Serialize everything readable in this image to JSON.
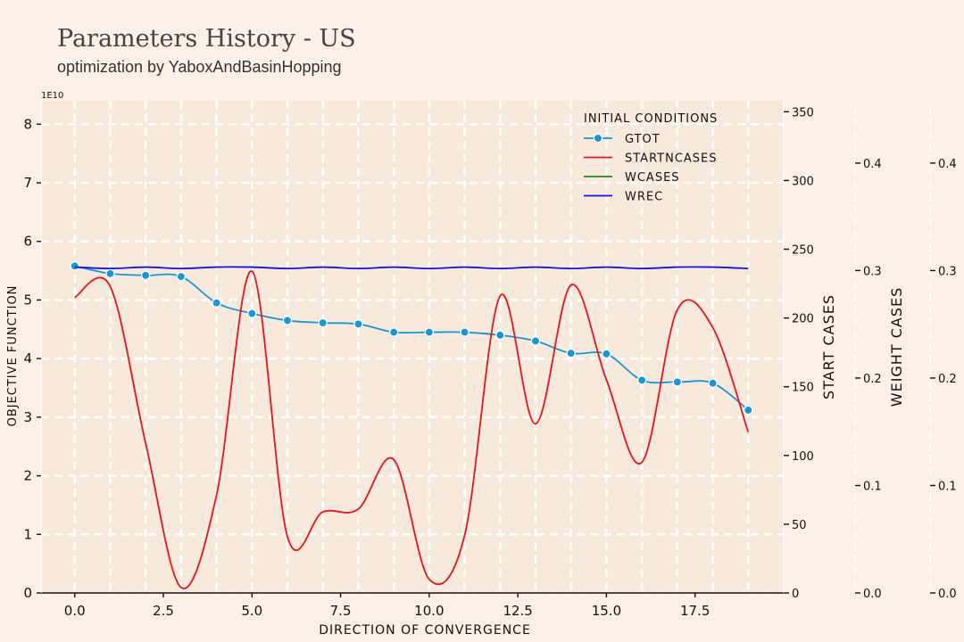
{
  "title": "Parameters History - US",
  "subtitle": "optimization by YaboxAndBasinHopping",
  "chart_data": {
    "type": "line",
    "xlabel": "DIRECTION OF CONVERGENCE",
    "ylabel": "OBJECTIVE FUNCTION",
    "y_offset_text": "1E10",
    "xlim": [
      -0.95,
      20
    ],
    "ylim": [
      0,
      8.4
    ],
    "xticks": [
      "0.0",
      "2.5",
      "5.0",
      "7.5",
      "10.0",
      "12.5",
      "15.0",
      "17.5"
    ],
    "yticks": [
      "0",
      "1",
      "2",
      "3",
      "4",
      "5",
      "6",
      "7",
      "8"
    ],
    "grid": true,
    "legend": {
      "title": "INITIAL CONDITIONS",
      "placement": "top-right"
    },
    "series": [
      {
        "name": "GTOT",
        "axis": "left",
        "color": "#1a96d4",
        "marker": true,
        "x": [
          0,
          1,
          2,
          3,
          4,
          5,
          6,
          7,
          8,
          9,
          10,
          11,
          12,
          13,
          14,
          15,
          16,
          17,
          18,
          19
        ],
        "values": [
          5.58,
          5.45,
          5.42,
          5.4,
          4.95,
          4.77,
          4.65,
          4.61,
          4.59,
          4.45,
          4.45,
          4.45,
          4.4,
          4.3,
          4.09,
          4.08,
          3.63,
          3.6,
          3.58,
          3.12
        ]
      },
      {
        "name": "STARTNCASES",
        "axis": "start",
        "color": "#e8141a",
        "marker": false,
        "x": [
          0,
          1,
          2,
          3,
          4,
          5,
          6,
          7,
          8,
          9,
          10,
          11,
          12,
          13,
          14,
          15,
          16,
          17,
          18,
          19
        ],
        "values": [
          215,
          223,
          109,
          4,
          71,
          234,
          41,
          59,
          61,
          97,
          10,
          42,
          216,
          123,
          224,
          155,
          95,
          206,
          193,
          117
        ]
      },
      {
        "name": "WCASES",
        "axis": "weight",
        "color": "#1a8a1a",
        "marker": false,
        "x": [],
        "values": []
      },
      {
        "name": "WREC",
        "axis": "start",
        "color": "#1414e0",
        "marker": false,
        "x": [
          0,
          1,
          2,
          3,
          4,
          5,
          6,
          7,
          8,
          9,
          10,
          11,
          12,
          13,
          14,
          15,
          16,
          17,
          18,
          19
        ],
        "values": [
          237,
          236,
          237,
          236,
          237,
          237,
          236,
          237,
          236,
          237,
          236,
          237,
          236,
          237,
          236,
          237,
          236,
          237,
          237,
          236
        ]
      }
    ],
    "axes_extra": [
      {
        "id": "start",
        "label": "START CASES",
        "ylim": [
          0,
          358
        ],
        "ticks": [
          "0",
          "50",
          "100",
          "150",
          "200",
          "250",
          "300",
          "350"
        ]
      },
      {
        "id": "weight",
        "label": "WEIGHT CASES",
        "ylim": [
          0,
          0.458
        ],
        "ticks": [
          "0.0",
          "0.1",
          "0.2",
          "0.3",
          "0.4"
        ]
      },
      {
        "id": "weight2",
        "label": "",
        "ylim": [
          0,
          0.458
        ],
        "ticks": [
          "0.0",
          "0.1",
          "0.2",
          "0.3",
          "0.4"
        ]
      }
    ]
  }
}
